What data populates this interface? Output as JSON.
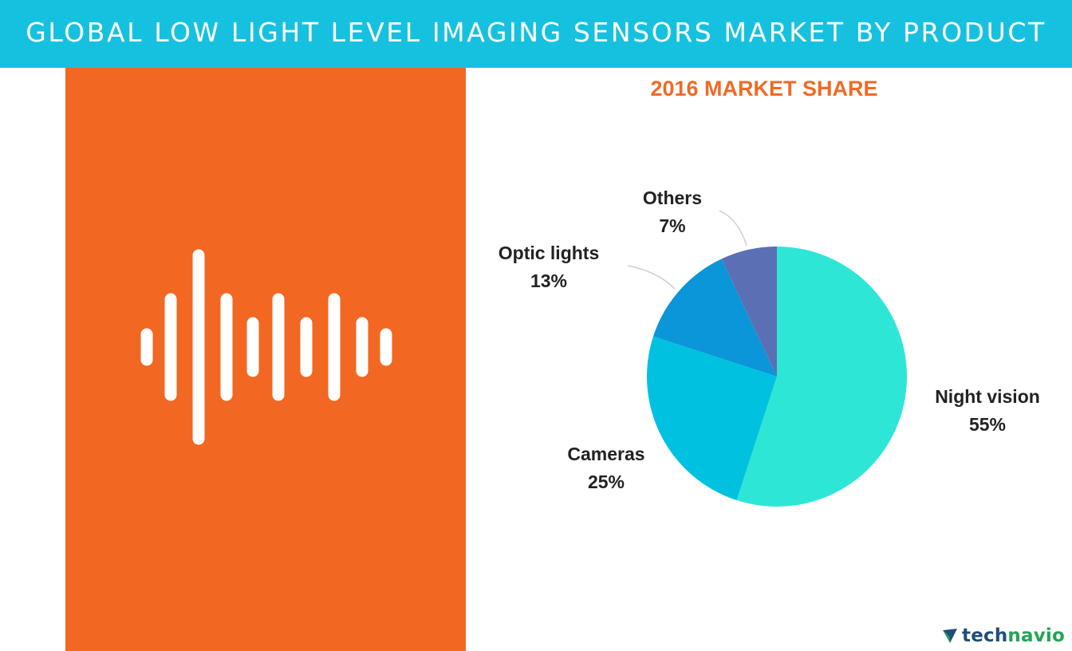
{
  "header": {
    "title": "GLOBAL LOW LIGHT LEVEL IMAGING SENSORS MARKET BY PRODUCT"
  },
  "colors": {
    "banner": "#16c1e0",
    "panel": "#f26722",
    "subtitle": "#ef6b26",
    "label": "#222222"
  },
  "illustration": {
    "icon": "sound-wave-icon"
  },
  "chart_data": {
    "type": "pie",
    "title": "2016 MARKET SHARE",
    "slices": [
      {
        "label": "Night vision",
        "value": 55,
        "value_label": "55%",
        "color": "#2ee6d6"
      },
      {
        "label": "Cameras",
        "value": 25,
        "value_label": "25%",
        "color": "#00c2e0"
      },
      {
        "label": "Optic lights",
        "value": 13,
        "value_label": "13%",
        "color": "#0a96d8"
      },
      {
        "label": "Others",
        "value": 7,
        "value_label": "7%",
        "color": "#5b6fb5"
      }
    ]
  },
  "brand": {
    "logo_part1": "tech",
    "logo_part2": "navio",
    "icon": "technavio-logo-icon"
  }
}
